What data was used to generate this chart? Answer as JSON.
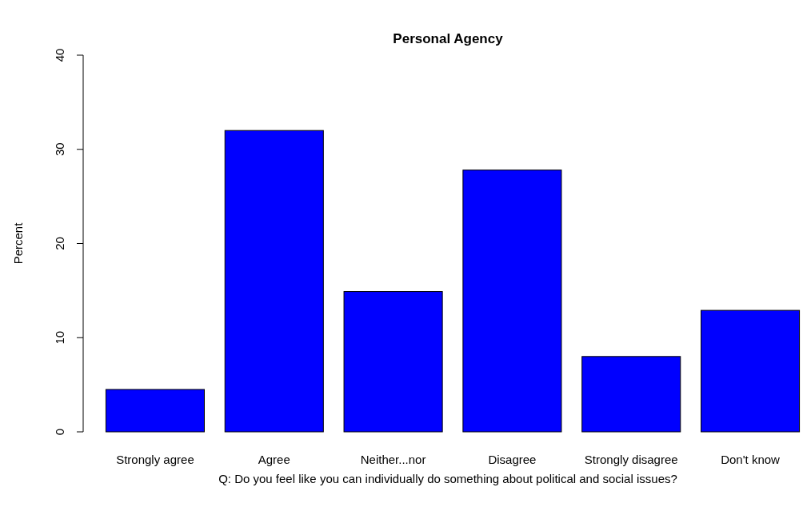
{
  "chart_data": {
    "type": "bar",
    "title": "Personal Agency",
    "xlabel": "Q: Do you feel like you can individually do something about political and social issues?",
    "ylabel": "Percent",
    "categories": [
      "Strongly agree",
      "Agree",
      "Neither...nor",
      "Disagree",
      "Strongly disagree",
      "Don't know"
    ],
    "values": [
      4.5,
      32.0,
      14.9,
      27.8,
      8.0,
      12.9
    ],
    "color": "#0000ff",
    "ylim": [
      0,
      40
    ],
    "yticks": [
      0,
      10,
      20,
      30,
      40
    ],
    "grid": false
  }
}
